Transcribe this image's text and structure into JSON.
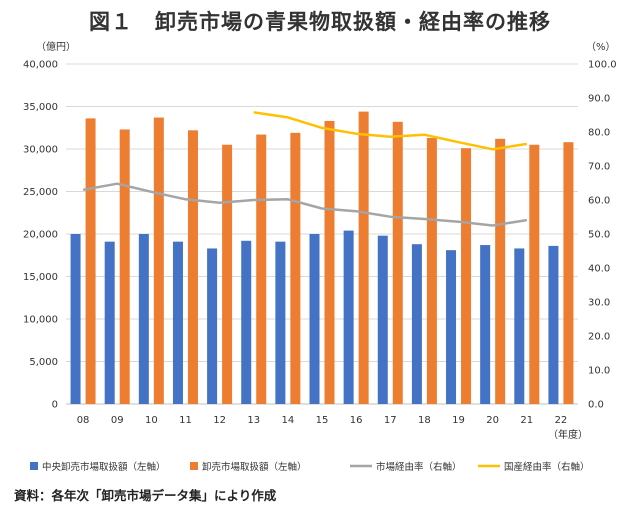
{
  "page": {
    "title": "図１　卸売市場の青果物取扱額・経由率の推移",
    "source": "資料：各年次「卸売市場データ集」により作成"
  },
  "chart_data": {
    "type": "bar",
    "categories": [
      "08",
      "09",
      "10",
      "11",
      "12",
      "13",
      "14",
      "15",
      "16",
      "17",
      "18",
      "19",
      "20",
      "21",
      "22"
    ],
    "left_unit": "（億円）",
    "right_unit": "（%）",
    "x_unit": "（年度）",
    "ylim_left": [
      0,
      40000
    ],
    "ylim_right": [
      0,
      100
    ],
    "left_ticks": [
      "0",
      "5,000",
      "10,000",
      "15,000",
      "20,000",
      "25,000",
      "30,000",
      "35,000",
      "40,000"
    ],
    "right_ticks": [
      "0.0",
      "10.0",
      "20.0",
      "30.0",
      "40.0",
      "50.0",
      "60.0",
      "70.0",
      "80.0",
      "90.0",
      "100.0"
    ],
    "grid": true,
    "legend_position": "bottom",
    "series": [
      {
        "name": "中央卸売市場取扱額（左軸）",
        "kind": "bar",
        "axis": "left",
        "color": "#4472c4",
        "values": [
          20000,
          19100,
          20000,
          19100,
          18300,
          19200,
          19100,
          20000,
          20400,
          19800,
          18800,
          18100,
          18700,
          18300,
          18600
        ]
      },
      {
        "name": "卸売市場取扱額（左軸）",
        "kind": "bar",
        "axis": "left",
        "color": "#ed7d31",
        "values": [
          33600,
          32300,
          33700,
          32200,
          30500,
          31700,
          31900,
          33300,
          34400,
          33200,
          31300,
          30100,
          31200,
          30500,
          30800
        ]
      },
      {
        "name": "市場経由率（右軸）",
        "kind": "line",
        "axis": "right",
        "color": "#a5a5a5",
        "values": [
          63,
          64.8,
          62.4,
          60.2,
          59.2,
          60,
          60.2,
          57.5,
          56.7,
          55.1,
          54.4,
          53.6,
          52.5,
          54.1,
          null
        ]
      },
      {
        "name": "国産経由率（右軸）",
        "kind": "line",
        "axis": "right",
        "color": "#ffc000",
        "values": [
          null,
          null,
          null,
          null,
          null,
          85.8,
          84.3,
          81.2,
          79.5,
          78.6,
          79.2,
          77,
          74.9,
          76.5,
          null
        ]
      }
    ]
  }
}
